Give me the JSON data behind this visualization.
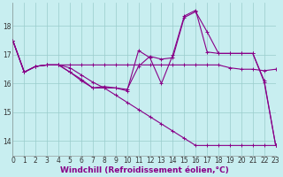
{
  "background_color": "#c8eef0",
  "line_color": "#880088",
  "grid_color": "#99cccc",
  "xlabel": "Windchill (Refroidissement éolien,°C)",
  "xlabel_fontsize": 6.5,
  "tick_fontsize": 5.5,
  "ylabel_ticks": [
    14,
    15,
    16,
    17,
    18
  ],
  "xlim": [
    0,
    23
  ],
  "ylim": [
    13.5,
    18.8
  ],
  "x_ticks": [
    0,
    1,
    2,
    3,
    4,
    5,
    6,
    7,
    8,
    9,
    10,
    11,
    12,
    13,
    14,
    15,
    16,
    17,
    18,
    19,
    20,
    21,
    22,
    23
  ],
  "series": [
    [
      17.5,
      16.4,
      16.6,
      16.65,
      16.65,
      16.65,
      16.65,
      16.65,
      16.65,
      16.65,
      16.65,
      16.65,
      16.65,
      16.65,
      16.65,
      16.65,
      16.65,
      16.65,
      16.65,
      16.55,
      16.5,
      16.5,
      16.45,
      16.5
    ],
    [
      17.5,
      16.4,
      16.6,
      16.65,
      16.65,
      16.4,
      16.15,
      15.85,
      15.9,
      15.85,
      15.8,
      16.6,
      16.95,
      16.85,
      16.9,
      18.3,
      18.5,
      17.8,
      17.05,
      17.05,
      17.05,
      17.05,
      16.1,
      13.85
    ],
    [
      17.5,
      16.4,
      16.6,
      16.65,
      16.65,
      16.4,
      16.1,
      15.85,
      15.85,
      15.85,
      15.75,
      17.15,
      16.9,
      16.0,
      17.0,
      18.35,
      18.55,
      17.1,
      17.05,
      17.05,
      17.05,
      17.05,
      16.05,
      13.85
    ],
    [
      17.5,
      16.4,
      16.6,
      16.65,
      16.65,
      16.55,
      16.3,
      16.05,
      15.85,
      15.6,
      15.35,
      15.1,
      14.85,
      14.6,
      14.35,
      14.1,
      13.85,
      13.85,
      13.85,
      13.85,
      13.85,
      13.85,
      13.85,
      13.85
    ]
  ]
}
